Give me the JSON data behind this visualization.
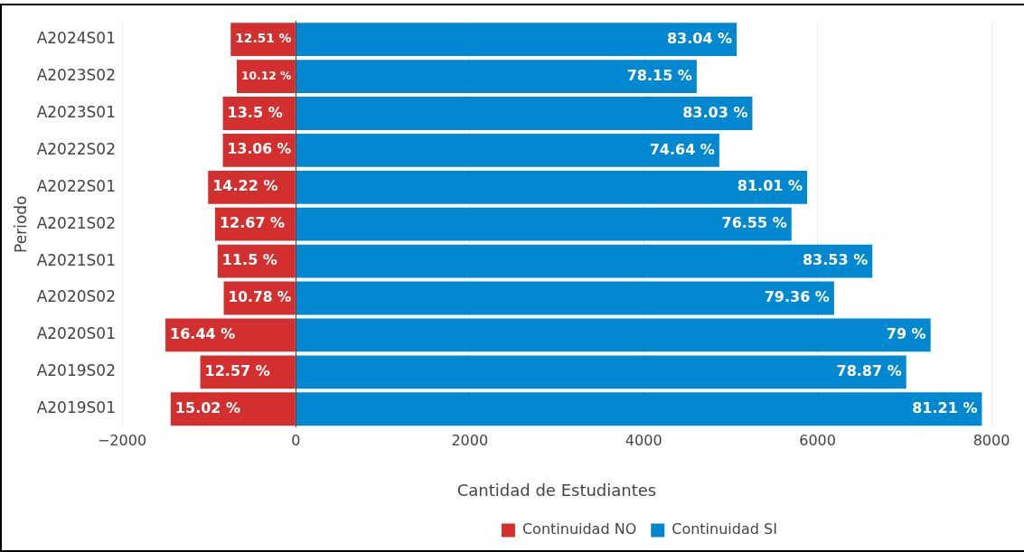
{
  "chart_data": {
    "type": "bar",
    "orientation": "horizontal",
    "stacked": true,
    "xlabel": "Cantidad de Estudiantes",
    "ylabel": "Periodo",
    "categories": [
      "A2024S01",
      "A2023S02",
      "A2023S01",
      "A2022S02",
      "A2022S01",
      "A2021S02",
      "A2021S01",
      "A2020S02",
      "A2020S01",
      "A2019S02",
      "A2019S01"
    ],
    "series": [
      {
        "name": "Continuidad NO",
        "color": "#d32f2f",
        "values": [
          -750,
          -680,
          -840,
          -840,
          -1010,
          -930,
          -900,
          -830,
          -1500,
          -1100,
          -1440
        ]
      },
      {
        "name": "Continuidad SI",
        "color": "#0288d1",
        "values": [
          5070,
          4610,
          5250,
          4870,
          5880,
          5700,
          6630,
          6190,
          7300,
          7020,
          7890
        ]
      }
    ],
    "annotations": [
      {
        "text": "12.51 %",
        "x": -750,
        "y": "A2024S01"
      },
      {
        "text": "10.12 %",
        "x": -680,
        "y": "A2023S02"
      },
      {
        "text": "13.5 %",
        "x": -840,
        "y": "A2023S01"
      },
      {
        "text": "13.06 %",
        "x": -840,
        "y": "A2022S02"
      },
      {
        "text": "14.22 %",
        "x": -1010,
        "y": "A2022S01"
      },
      {
        "text": "12.67 %",
        "x": -930,
        "y": "A2021S02"
      },
      {
        "text": "11.5 %",
        "x": -900,
        "y": "A2021S01"
      },
      {
        "text": "10.78 %",
        "x": -830,
        "y": "A2020S02"
      },
      {
        "text": "16.44 %",
        "x": -1500,
        "y": "A2020S01"
      },
      {
        "text": "12.57 %",
        "x": -1100,
        "y": "A2019S02"
      },
      {
        "text": "15.02 %",
        "x": -1440,
        "y": "A2019S01"
      },
      {
        "text": "83.04 %",
        "x": 5070,
        "y": "A2024S01"
      },
      {
        "text": "78.15 %",
        "x": 4610,
        "y": "A2023S02"
      },
      {
        "text": "83.03 %",
        "x": 5250,
        "y": "A2023S01"
      },
      {
        "text": "74.64 %",
        "x": 4870,
        "y": "A2022S02"
      },
      {
        "text": "81.01 %",
        "x": 5880,
        "y": "A2022S01"
      },
      {
        "text": "76.55 %",
        "x": 5700,
        "y": "A2021S02"
      },
      {
        "text": "83.53 %",
        "x": 6630,
        "y": "A2021S01"
      },
      {
        "text": "79.36 %",
        "x": 6190,
        "y": "A2020S02"
      },
      {
        "text": "79 %",
        "x": 7300,
        "y": "A2020S01"
      },
      {
        "text": "78.87 %",
        "x": 7020,
        "y": "A2019S02"
      },
      {
        "text": "81.21 %",
        "x": 7890,
        "y": "A2019S01"
      }
    ],
    "xlim": [
      -2000,
      8000
    ],
    "xticks": [
      {
        "value": -2000,
        "label": "−2000"
      },
      0,
      2000,
      4000,
      6000,
      8000
    ],
    "grid": "x",
    "legend": "bottom"
  }
}
